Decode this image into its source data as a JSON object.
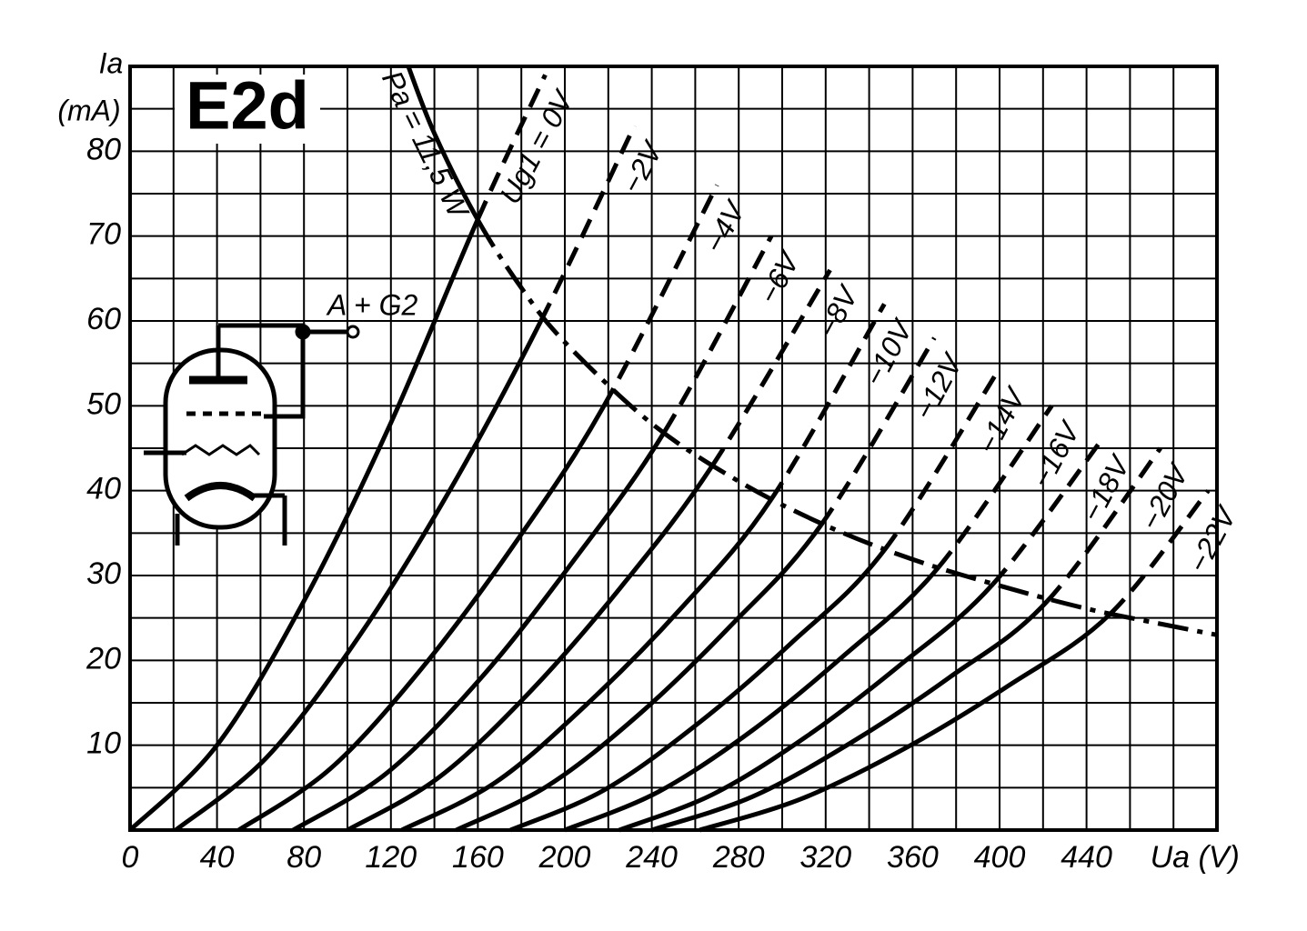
{
  "chart_data": {
    "type": "line",
    "title": "E2d",
    "ylabel": [
      "Ia",
      "(mA)"
    ],
    "xlabel": "Ua (V)",
    "circuit_label": "A + G2",
    "xlim": [
      0,
      500
    ],
    "ylim": [
      0,
      90
    ],
    "xticks": [
      0,
      40,
      80,
      120,
      160,
      200,
      240,
      280,
      320,
      360,
      400,
      440
    ],
    "yticks": [
      10,
      20,
      30,
      40,
      50,
      60,
      70,
      80
    ],
    "xgrid": [
      0,
      20,
      40,
      60,
      80,
      100,
      120,
      140,
      160,
      180,
      200,
      220,
      240,
      260,
      280,
      300,
      320,
      340,
      360,
      380,
      400,
      420,
      440,
      460,
      480,
      500
    ],
    "ygrid": [
      0,
      5,
      10,
      15,
      20,
      25,
      30,
      35,
      40,
      45,
      50,
      55,
      60,
      65,
      70,
      75,
      80,
      85,
      90
    ],
    "grid": true,
    "color": "#000000",
    "power_curve": {
      "name": "Pa = 11,5 W",
      "x": [
        128,
        140,
        160,
        180,
        200,
        240,
        280,
        320,
        360,
        400,
        440,
        480,
        500
      ],
      "values": [
        90,
        82.1,
        71.9,
        63.9,
        57.5,
        47.9,
        41.1,
        35.9,
        31.9,
        28.8,
        26.1,
        24,
        23
      ]
    },
    "series": [
      {
        "name": "Ug1 = 0V",
        "x": [
          0,
          40,
          80,
          120,
          160,
          191
        ],
        "values": [
          0,
          10,
          27,
          48,
          72,
          89
        ]
      },
      {
        "name": "−2V",
        "x": [
          21,
          63,
          105,
          147,
          189,
          232
        ],
        "values": [
          0,
          8.6,
          22.7,
          40,
          60,
          83
        ]
      },
      {
        "name": "−4V",
        "x": [
          50,
          92,
          134,
          176,
          218,
          270
        ],
        "values": [
          0,
          7.2,
          19,
          33.4,
          50,
          76
        ]
      },
      {
        "name": "−6V",
        "x": [
          75,
          118,
          161,
          203,
          246,
          295
        ],
        "values": [
          0,
          6.7,
          17.8,
          31.4,
          47,
          70
        ]
      },
      {
        "name": "−8V",
        "x": [
          100,
          142,
          184,
          226,
          268,
          322
        ],
        "values": [
          0,
          6.2,
          16.3,
          28.7,
          43,
          66
        ]
      },
      {
        "name": "−10V",
        "x": [
          125,
          168,
          210,
          253,
          295,
          347
        ],
        "values": [
          0,
          5.6,
          14.8,
          26,
          39,
          62
        ]
      },
      {
        "name": "−12V",
        "x": [
          150,
          192,
          234,
          276,
          318,
          370
        ],
        "values": [
          0,
          5.2,
          13.6,
          24,
          36,
          58
        ]
      },
      {
        "name": "−14V",
        "x": [
          175,
          218,
          261,
          304,
          347,
          399
        ],
        "values": [
          0,
          4.7,
          12.5,
          22,
          33,
          54
        ]
      },
      {
        "name": "−16V",
        "x": [
          200,
          243,
          286,
          329,
          372,
          424
        ],
        "values": [
          0,
          4.5,
          11.7,
          20.7,
          31,
          50
        ]
      },
      {
        "name": "−18V",
        "x": [
          225,
          268,
          311,
          354,
          397,
          447
        ],
        "values": [
          0,
          4.2,
          11,
          19.4,
          29,
          46
        ]
      },
      {
        "name": "−20V",
        "x": [
          240,
          286,
          331,
          377,
          422,
          474
        ],
        "values": [
          0,
          3.9,
          10.2,
          18,
          27,
          45
        ]
      },
      {
        "name": "−22V",
        "x": [
          262,
          309,
          357,
          404,
          451,
          496
        ],
        "values": [
          0,
          3.7,
          9.7,
          17,
          25.5,
          40
        ]
      }
    ]
  }
}
